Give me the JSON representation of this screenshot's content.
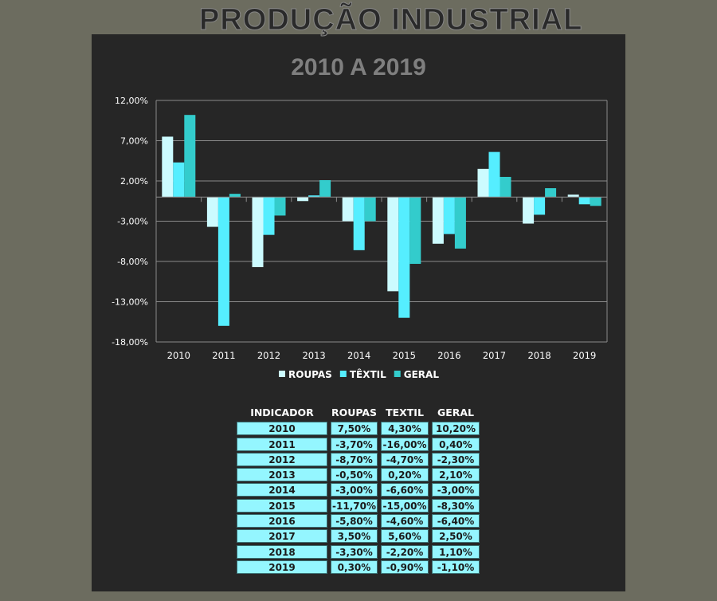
{
  "header": {
    "title": "PRODUÇÃO INDUSTRIAL",
    "subtitle": "2010 A 2019"
  },
  "chart_data": {
    "type": "bar",
    "title": "2010 A 2019",
    "categories": [
      "2010",
      "2011",
      "2012",
      "2013",
      "2014",
      "2015",
      "2016",
      "2017",
      "2018",
      "2019"
    ],
    "series": [
      {
        "name": "ROUPAS",
        "color": "#ccfbff",
        "values": [
          7.5,
          -3.7,
          -8.7,
          -0.5,
          -3.0,
          -11.7,
          -5.8,
          3.5,
          -3.3,
          0.3
        ]
      },
      {
        "name": "TÊXTIL",
        "color": "#55eeff",
        "values": [
          4.3,
          -16.0,
          -4.7,
          0.2,
          -6.6,
          -15.0,
          -4.6,
          5.6,
          -2.2,
          -0.9
        ]
      },
      {
        "name": "GERAL",
        "color": "#33cccc",
        "values": [
          10.2,
          0.4,
          -2.3,
          2.1,
          -3.0,
          -8.3,
          -6.4,
          2.5,
          1.1,
          -1.1
        ]
      }
    ],
    "yticks": [
      12,
      7,
      2,
      -3,
      -8,
      -13,
      -18
    ],
    "ytick_labels": [
      "12,00%",
      "7,00%",
      "2,00%",
      "-3,00%",
      "-8,00%",
      "-13,00%",
      "-18,00%"
    ],
    "ylim": [
      -18,
      12
    ],
    "grid": true,
    "legend": "bottom"
  },
  "table": {
    "headers": [
      "INDICADOR",
      "ROUPAS",
      "TEXTIL",
      "GERAL"
    ],
    "rows": [
      [
        "2010",
        "7,50%",
        "4,30%",
        "10,20%"
      ],
      [
        "2011",
        "-3,70%",
        "-16,00%",
        "0,40%"
      ],
      [
        "2012",
        "-8,70%",
        "-4,70%",
        "-2,30%"
      ],
      [
        "2013",
        "-0,50%",
        "0,20%",
        "2,10%"
      ],
      [
        "2014",
        "-3,00%",
        "-6,60%",
        "-3,00%"
      ],
      [
        "2015",
        "-11,70%",
        "-15,00%",
        "-8,30%"
      ],
      [
        "2016",
        "-5,80%",
        "-4,60%",
        "-6,40%"
      ],
      [
        "2017",
        "3,50%",
        "5,60%",
        "2,50%"
      ],
      [
        "2018",
        "-3,30%",
        "-2,20%",
        "1,10%"
      ],
      [
        "2019",
        "0,30%",
        "-0,90%",
        "-1,10%"
      ]
    ]
  }
}
